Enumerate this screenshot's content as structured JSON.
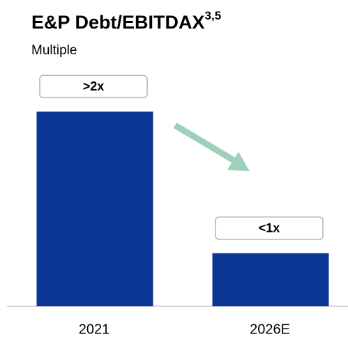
{
  "chart_data": {
    "type": "bar",
    "title": "E&P Debt/EBITDAX",
    "title_superscript": "3,5",
    "subtitle": "Multiple",
    "categories": [
      "2021",
      "2026E"
    ],
    "values": [
      2.2,
      0.6
    ],
    "value_labels": [
      ">2x",
      "<1x"
    ],
    "color": "#0b3593",
    "ylim": [
      0,
      2.4
    ]
  }
}
